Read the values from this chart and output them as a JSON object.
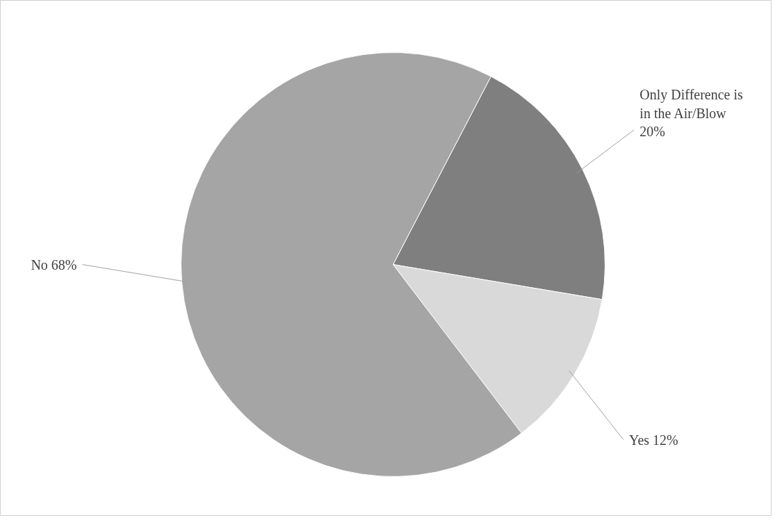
{
  "chart_data": {
    "type": "pie",
    "categories": [
      "Only Difference is in the Air/Blow",
      "Yes",
      "No"
    ],
    "values": [
      20,
      12,
      68
    ],
    "value_labels": [
      "20%",
      "12%",
      "68%"
    ],
    "colors": [
      "#7f7f7f",
      "#d9d9d9",
      "#a5a5a5"
    ]
  }
}
